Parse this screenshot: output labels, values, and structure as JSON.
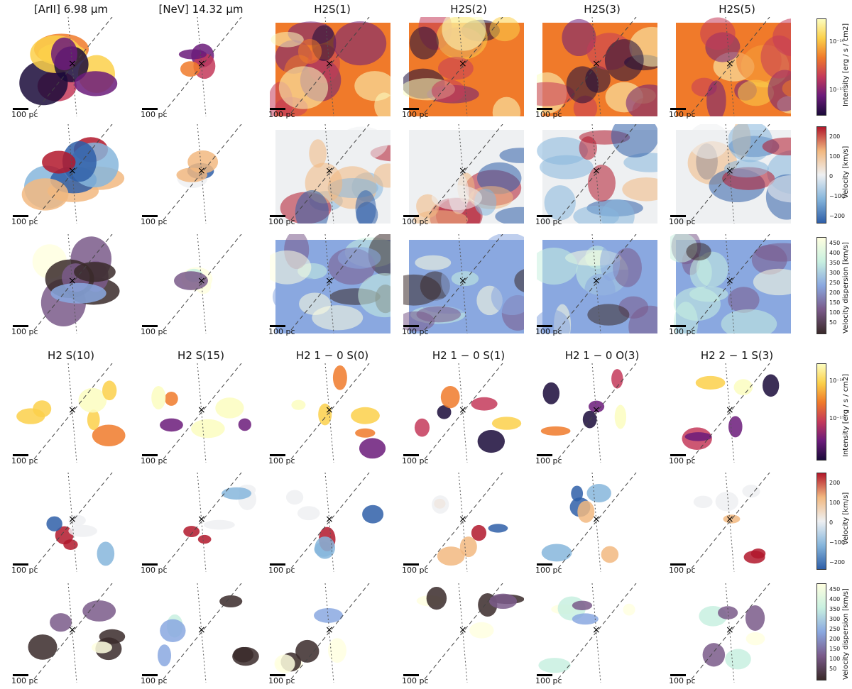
{
  "figure": {
    "top_titles": [
      "[ArII] 6.98 µm",
      "[NeV] 14.32 µm",
      "H2S(1)",
      "H2S(2)",
      "H2S(3)",
      "H2S(5)"
    ],
    "bottom_titles": [
      "H2 S(10)",
      "H2 S(15)",
      "H2 1 − 0 S(0)",
      "H2 1 − 0 S(1)",
      "H2 1 − 0 O(3)",
      "H2 2 − 1 S(3)"
    ],
    "scale_label": "100 pc",
    "colorbars": {
      "intensity": {
        "label": "Intensity [erg / s / cm2]",
        "ticks": [
          "10⁻¹⁶",
          "10⁻¹⁷"
        ]
      },
      "velocity": {
        "label": "Velocity [km/s]",
        "ticks": [
          "200",
          "100",
          "0",
          "−100",
          "−200"
        ]
      },
      "dispersion": {
        "label": "Velocity dispersion [km/s]",
        "ticks": [
          "450",
          "400",
          "350",
          "300",
          "250",
          "200",
          "150",
          "100",
          "50"
        ]
      }
    },
    "colors": {
      "intensity": [
        "#1a0b3a",
        "#6b1b7a",
        "#c43a5a",
        "#f07a2a",
        "#fbd04a",
        "#fcfdbf"
      ],
      "velocity": [
        "#2f5fa8",
        "#86b6dc",
        "#eef0f2",
        "#f2b880",
        "#b2182b"
      ],
      "dispersion": [
        "#3a2a2a",
        "#7a5a8a",
        "#8aa8e0",
        "#c8f0e0",
        "#ffffe0"
      ]
    }
  }
}
